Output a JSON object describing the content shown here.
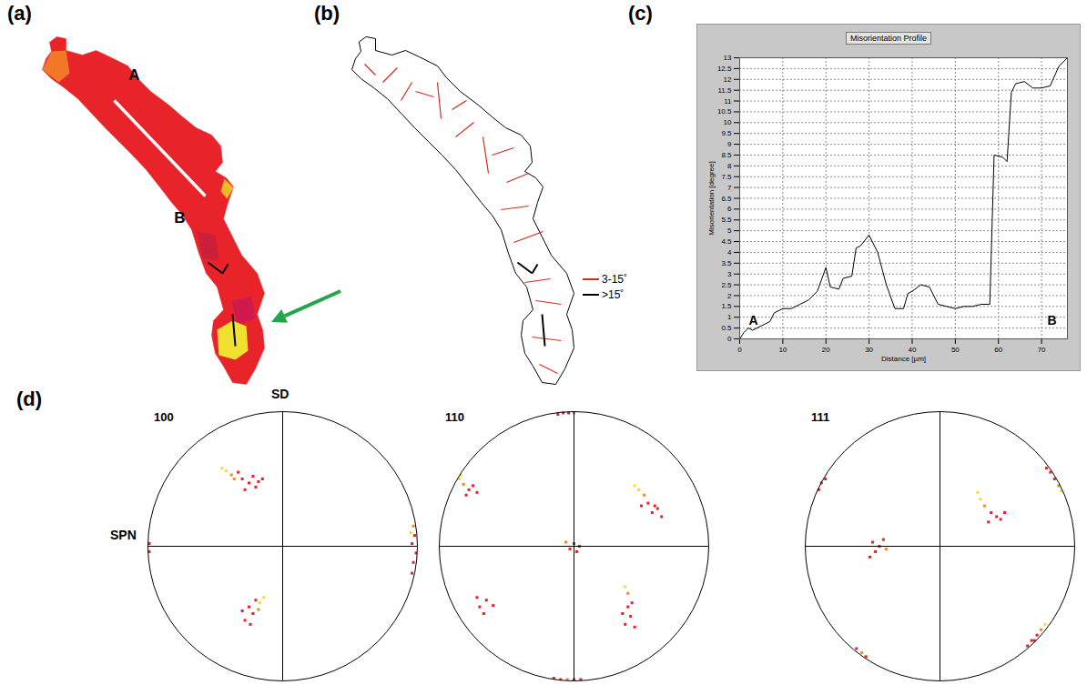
{
  "chart_data": [
    {
      "panel": "(a)",
      "type": "map",
      "tick_labels": false,
      "xlim": [
        0,
        130
      ],
      "ylim": [
        0,
        200
      ],
      "fill_color": "#e8242a",
      "outline": [
        [
          11,
          5
        ],
        [
          16,
          6
        ],
        [
          16,
          12.5
        ],
        [
          25,
          15
        ],
        [
          32.5,
          12.5
        ],
        [
          40,
          16
        ],
        [
          50,
          21
        ],
        [
          55,
          27.5
        ],
        [
          62.5,
          35
        ],
        [
          72.5,
          42.5
        ],
        [
          80,
          49
        ],
        [
          87.5,
          55
        ],
        [
          96,
          59
        ],
        [
          101,
          65
        ],
        [
          102,
          74
        ],
        [
          98,
          79
        ],
        [
          104,
          82.5
        ],
        [
          108,
          87.5
        ],
        [
          105,
          96
        ],
        [
          102.5,
          105
        ],
        [
          107.5,
          115
        ],
        [
          112.5,
          125
        ],
        [
          121,
          135
        ],
        [
          125,
          146
        ],
        [
          121,
          157.5
        ],
        [
          124,
          166
        ],
        [
          125,
          176
        ],
        [
          120,
          187.5
        ],
        [
          115,
          196
        ],
        [
          107.5,
          195
        ],
        [
          102.5,
          186
        ],
        [
          98,
          179
        ],
        [
          96,
          169
        ],
        [
          97,
          161
        ],
        [
          102.5,
          155
        ],
        [
          99,
          142.5
        ],
        [
          93,
          135
        ],
        [
          89,
          124
        ],
        [
          85,
          111
        ],
        [
          80,
          103
        ],
        [
          74,
          96
        ],
        [
          67.5,
          87.5
        ],
        [
          60,
          78
        ],
        [
          52.5,
          70
        ],
        [
          45,
          62.5
        ],
        [
          37.5,
          55
        ],
        [
          30,
          47
        ],
        [
          22.5,
          39
        ],
        [
          15,
          33
        ],
        [
          8,
          28
        ],
        [
          3,
          23
        ],
        [
          5,
          17
        ],
        [
          8,
          13
        ],
        [
          7,
          8
        ]
      ],
      "patches": [
        {
          "color": "#f07828",
          "points": [
            [
              3,
              23
            ],
            [
              8,
              13
            ],
            [
              16,
              12.5
            ],
            [
              18,
              25
            ],
            [
              12,
              30
            ]
          ]
        },
        {
          "color": "#f3b82c",
          "points": [
            [
              103,
              83
            ],
            [
              108,
              88
            ],
            [
              104.5,
              94
            ],
            [
              101,
              90
            ]
          ]
        },
        {
          "color": "#cc1f3a",
          "points": [
            [
              88,
              112
            ],
            [
              98,
              114
            ],
            [
              100,
              128
            ],
            [
              91,
              127
            ]
          ]
        },
        {
          "color": "#d01a4e",
          "points": [
            [
              107,
              150
            ],
            [
              118,
              148
            ],
            [
              120,
              160
            ],
            [
              110,
              163
            ]
          ]
        },
        {
          "color": "#f0e030",
          "points": [
            [
              99,
              166
            ],
            [
              107.5,
              161
            ],
            [
              115,
              164
            ],
            [
              116,
              177.5
            ],
            [
              109,
              182.5
            ],
            [
              100,
              180
            ]
          ]
        }
      ],
      "profile_line": {
        "from": [
          42.5,
          40
        ],
        "to": [
          92.5,
          92.5
        ],
        "labels": [
          "A",
          "B"
        ]
      }
    },
    {
      "panel": "(b)",
      "type": "map",
      "tick_labels": false,
      "legend": "right",
      "series": [
        {
          "name": "3-15˚",
          "color": "#d42a1e",
          "segments": [
            [
              10,
              20,
              16,
              26
            ],
            [
              20,
              30,
              28,
              22
            ],
            [
              30,
              40,
              36,
              30
            ],
            [
              38,
              35,
              48,
              38
            ],
            [
              50,
              30,
              52,
              50
            ],
            [
              58,
              45,
              66,
              40
            ],
            [
              60,
              60,
              70,
              52
            ],
            [
              75,
              60,
              78,
              80
            ],
            [
              80,
              70,
              92,
              66
            ],
            [
              88,
              85,
              100,
              80
            ],
            [
              85,
              100,
              100,
              98
            ],
            [
              92,
              118,
              108,
              112
            ],
            [
              98,
              140,
              112,
              138
            ],
            [
              104,
              150,
              118,
              152
            ],
            [
              102,
              170,
              118,
              172
            ],
            [
              106,
              185,
              116,
              190
            ]
          ]
        },
        {
          "name": ">15˚",
          "color": "#000000",
          "segments": [
            [
              94,
              129,
              102,
              135
            ],
            [
              102,
              135,
              105,
              130
            ],
            [
              107.5,
              157.5,
              109,
              175
            ]
          ]
        }
      ]
    },
    {
      "panel": "(c)",
      "type": "line",
      "title": "Misorientation Profile",
      "x_label": "Distance [µm]",
      "y_label": "Misorientation [degree]",
      "x": [
        0,
        1,
        2,
        3,
        5,
        7,
        8,
        10,
        12,
        14,
        16,
        18,
        20,
        21,
        23,
        24,
        26,
        27,
        28,
        30,
        32,
        34,
        36,
        38,
        39,
        40,
        42,
        44,
        46,
        48,
        50,
        52,
        54,
        56,
        58,
        59,
        61,
        62,
        63,
        64,
        66,
        68,
        70,
        72,
        74,
        76
      ],
      "values": [
        0,
        0.3,
        0.5,
        0.4,
        0.6,
        0.8,
        1.2,
        1.4,
        1.4,
        1.6,
        1.8,
        2.2,
        3.3,
        2.4,
        2.3,
        2.8,
        2.9,
        4.2,
        4.3,
        4.8,
        4.0,
        2.5,
        1.4,
        1.4,
        2.1,
        2.2,
        2.5,
        2.4,
        1.6,
        1.5,
        1.4,
        1.5,
        1.5,
        1.6,
        1.6,
        8.5,
        8.4,
        8.2,
        11.4,
        11.8,
        11.9,
        11.6,
        11.6,
        11.7,
        12.6,
        13
      ],
      "color": "#000000",
      "xlim": [
        0,
        76
      ],
      "ylim": [
        0,
        13
      ],
      "xticks": [
        0,
        10,
        20,
        30,
        40,
        50,
        60,
        70
      ],
      "yticks": [
        0,
        0.5,
        1,
        1.5,
        2,
        2.5,
        3,
        3.5,
        4,
        4.5,
        5,
        5.5,
        6,
        6.5,
        7,
        7.5,
        8,
        8.5,
        9,
        9.5,
        10,
        10.5,
        11,
        11.5,
        12,
        12.5,
        13
      ],
      "grid": true,
      "endpoint_labels": [
        "A",
        "B"
      ]
    },
    {
      "panel": "(d)",
      "type": "scatter",
      "marker": "square",
      "tick_labels": false,
      "pole_figures": [
        {
          "title": "100",
          "y_label": "SD",
          "x_label": "SPN",
          "xlim": [
            -1,
            1
          ],
          "ylim": [
            -1,
            1
          ],
          "points": [
            [
              -0.22,
              0.52
            ],
            [
              -0.25,
              0.47
            ],
            [
              -0.3,
              0.5
            ],
            [
              -0.33,
              0.55
            ],
            [
              -0.18,
              0.48
            ],
            [
              -0.28,
              0.42
            ],
            [
              -0.36,
              0.5
            ],
            [
              -0.42,
              0.56
            ],
            [
              -0.45,
              0.58
            ],
            [
              -0.38,
              0.53
            ],
            [
              -0.2,
              0.44
            ],
            [
              -0.15,
              0.5
            ],
            [
              0.97,
              0.15
            ],
            [
              0.98,
              0.08
            ],
            [
              0.96,
              0.02
            ],
            [
              0.99,
              -0.05
            ],
            [
              0.97,
              -0.12
            ],
            [
              0.95,
              0.1
            ],
            [
              0.96,
              -0.2
            ],
            [
              -0.99,
              0.02
            ],
            [
              -0.99,
              -0.04
            ],
            [
              -0.2,
              -0.4
            ],
            [
              -0.25,
              -0.45
            ],
            [
              -0.22,
              -0.5
            ],
            [
              -0.28,
              -0.55
            ],
            [
              -0.18,
              -0.47
            ],
            [
              -0.17,
              -0.42
            ],
            [
              -0.14,
              -0.38
            ],
            [
              -0.3,
              -0.48
            ],
            [
              -0.24,
              -0.58
            ]
          ],
          "colors": [
            "#e8202a",
            "#e8202a",
            "#e8202a",
            "#e8202a",
            "#e8202a",
            "#e8202a",
            "#f08a28",
            "#f2dc34",
            "#f2dc34",
            "#f08a28",
            "#e8202a",
            "#e8202a",
            "#f08a28",
            "#e8202a",
            "#e8202a",
            "#e8202a",
            "#e8202a",
            "#f2dc34",
            "#e8202a",
            "#e8202a",
            "#e8202a",
            "#e8202a",
            "#e8202a",
            "#e8202a",
            "#e8202a",
            "#f08a28",
            "#f2dc34",
            "#f2dc34",
            "#e8202a",
            "#e8202a"
          ]
        },
        {
          "title": "110",
          "xlim": [
            -1,
            1
          ],
          "ylim": [
            -1,
            1
          ],
          "points": [
            [
              -0.08,
              0.99
            ],
            [
              -0.04,
              0.99
            ],
            [
              -0.12,
              0.98
            ],
            [
              0.0,
              0.99
            ],
            [
              -0.1,
              -0.99
            ],
            [
              -0.05,
              -0.99
            ],
            [
              0.0,
              -0.99
            ],
            [
              0.05,
              -0.99
            ],
            [
              -0.15,
              -0.98
            ],
            [
              -0.85,
              0.5
            ],
            [
              -0.82,
              0.46
            ],
            [
              -0.78,
              0.42
            ],
            [
              -0.75,
              0.45
            ],
            [
              -0.72,
              0.4
            ],
            [
              -0.8,
              0.38
            ],
            [
              -0.84,
              0.53
            ],
            [
              0.45,
              0.45
            ],
            [
              0.48,
              0.42
            ],
            [
              0.52,
              0.38
            ],
            [
              0.55,
              0.32
            ],
            [
              0.6,
              0.3
            ],
            [
              0.58,
              0.25
            ],
            [
              0.62,
              0.28
            ],
            [
              0.5,
              0.3
            ],
            [
              0.65,
              0.22
            ],
            [
              0.0,
              0.02
            ],
            [
              -0.03,
              -0.02
            ],
            [
              0.04,
              0.0
            ],
            [
              -0.06,
              0.03
            ],
            [
              0.02,
              -0.04
            ],
            [
              -0.65,
              -0.4
            ],
            [
              -0.7,
              -0.45
            ],
            [
              -0.72,
              -0.38
            ],
            [
              -0.6,
              -0.44
            ],
            [
              -0.67,
              -0.5
            ],
            [
              0.38,
              -0.3
            ],
            [
              0.4,
              -0.35
            ],
            [
              0.4,
              -0.45
            ],
            [
              0.42,
              -0.52
            ],
            [
              0.36,
              -0.5
            ],
            [
              0.45,
              -0.6
            ],
            [
              0.38,
              -0.58
            ],
            [
              0.43,
              -0.42
            ]
          ],
          "colors": [
            "#e8202a",
            "#e8202a",
            "#e8202a",
            "#f08a28",
            "#e8202a",
            "#f08a28",
            "#e8202a",
            "#e8202a",
            "#e8202a",
            "#f2dc34",
            "#f08a28",
            "#e8202a",
            "#e8202a",
            "#e8202a",
            "#e8202a",
            "#f2dc34",
            "#f2dc34",
            "#f2dc34",
            "#f08a28",
            "#e8202a",
            "#e8202a",
            "#e8202a",
            "#e8202a",
            "#e8202a",
            "#e8202a",
            "#e8202a",
            "#e8202a",
            "#e8202a",
            "#f08a28",
            "#e8202a",
            "#e8202a",
            "#e8202a",
            "#e8202a",
            "#e8202a",
            "#e8202a",
            "#f2dc34",
            "#f08a28",
            "#e8202a",
            "#e8202a",
            "#e8202a",
            "#e8202a",
            "#e8202a",
            "#e8202a"
          ]
        },
        {
          "title": "111",
          "xlim": [
            -1,
            1
          ],
          "ylim": [
            -1,
            1
          ],
          "points": [
            [
              -0.88,
              0.47
            ],
            [
              -0.85,
              0.5
            ],
            [
              -0.9,
              0.42
            ],
            [
              0.82,
              0.55
            ],
            [
              0.85,
              0.5
            ],
            [
              0.88,
              0.45
            ],
            [
              0.79,
              0.58
            ],
            [
              0.9,
              0.41
            ],
            [
              -0.45,
              0.0
            ],
            [
              -0.5,
              0.03
            ],
            [
              -0.48,
              -0.04
            ],
            [
              -0.42,
              0.05
            ],
            [
              -0.4,
              -0.02
            ],
            [
              -0.52,
              -0.08
            ],
            [
              0.28,
              0.4
            ],
            [
              0.3,
              0.35
            ],
            [
              0.33,
              0.3
            ],
            [
              0.38,
              0.25
            ],
            [
              0.42,
              0.22
            ],
            [
              0.45,
              0.2
            ],
            [
              0.36,
              0.18
            ],
            [
              0.48,
              0.25
            ],
            [
              0.68,
              -0.7
            ],
            [
              0.72,
              -0.66
            ],
            [
              0.75,
              -0.62
            ],
            [
              0.78,
              -0.58
            ],
            [
              0.65,
              -0.74
            ],
            [
              0.7,
              -0.7
            ],
            [
              -0.62,
              -0.76
            ],
            [
              -0.58,
              -0.79
            ],
            [
              -0.55,
              -0.82
            ]
          ],
          "colors": [
            "#e8202a",
            "#e8202a",
            "#e8202a",
            "#e8202a",
            "#e8202a",
            "#f08a28",
            "#e8202a",
            "#f2dc34",
            "#e8202a",
            "#e8202a",
            "#e8202a",
            "#e8202a",
            "#f08a28",
            "#e8202a",
            "#f2dc34",
            "#f2dc34",
            "#f08a28",
            "#e8202a",
            "#e8202a",
            "#e8202a",
            "#e8202a",
            "#e8202a",
            "#e8202a",
            "#e8202a",
            "#f08a28",
            "#f2dc34",
            "#e8202a",
            "#e8202a",
            "#e8202a",
            "#f08a28",
            "#e8202a"
          ]
        }
      ]
    }
  ]
}
